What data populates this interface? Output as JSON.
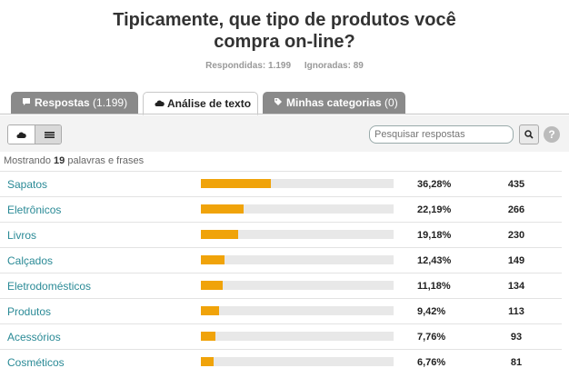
{
  "question": {
    "title_line1": "Tipicamente, que tipo de produtos você",
    "title_line2": "compra on-line?",
    "answered": "Respondidas: 1.199",
    "skipped": "Ignoradas: 89"
  },
  "tabs": [
    {
      "icon": "speech-bubble-icon",
      "label": "Respostas",
      "count": "(1.199)",
      "active": false
    },
    {
      "icon": "cloud-icon",
      "label": "Análise de texto",
      "count": "",
      "active": true
    },
    {
      "icon": "tag-icon",
      "label": "Minhas categorias",
      "count": "(0)",
      "active": false
    }
  ],
  "toolbar": {
    "view_cloud_icon": "cloud-icon",
    "view_list_icon": "list-icon",
    "search_placeholder": "Pesquisar respostas",
    "search_icon": "magnifier-icon",
    "help_label": "?"
  },
  "showing": {
    "prefix": "Mostrando",
    "count": "19",
    "suffix": "palavras e frases"
  },
  "accent_color": "#f0a30a",
  "link_color": "#2a8a96",
  "rows": [
    {
      "word": "Sapatos",
      "percent": "36,28%",
      "count": "435",
      "fraction": 0.3628
    },
    {
      "word": "Eletrônicos",
      "percent": "22,19%",
      "count": "266",
      "fraction": 0.2219
    },
    {
      "word": "Livros",
      "percent": "19,18%",
      "count": "230",
      "fraction": 0.1918
    },
    {
      "word": "Calçados",
      "percent": "12,43%",
      "count": "149",
      "fraction": 0.1243
    },
    {
      "word": "Eletrodomésticos",
      "percent": "11,18%",
      "count": "134",
      "fraction": 0.1118
    },
    {
      "word": "Produtos",
      "percent": "9,42%",
      "count": "113",
      "fraction": 0.0942
    },
    {
      "word": "Acessórios",
      "percent": "7,76%",
      "count": "93",
      "fraction": 0.0776
    },
    {
      "word": "Cosméticos",
      "percent": "6,76%",
      "count": "81",
      "fraction": 0.0676
    }
  ]
}
